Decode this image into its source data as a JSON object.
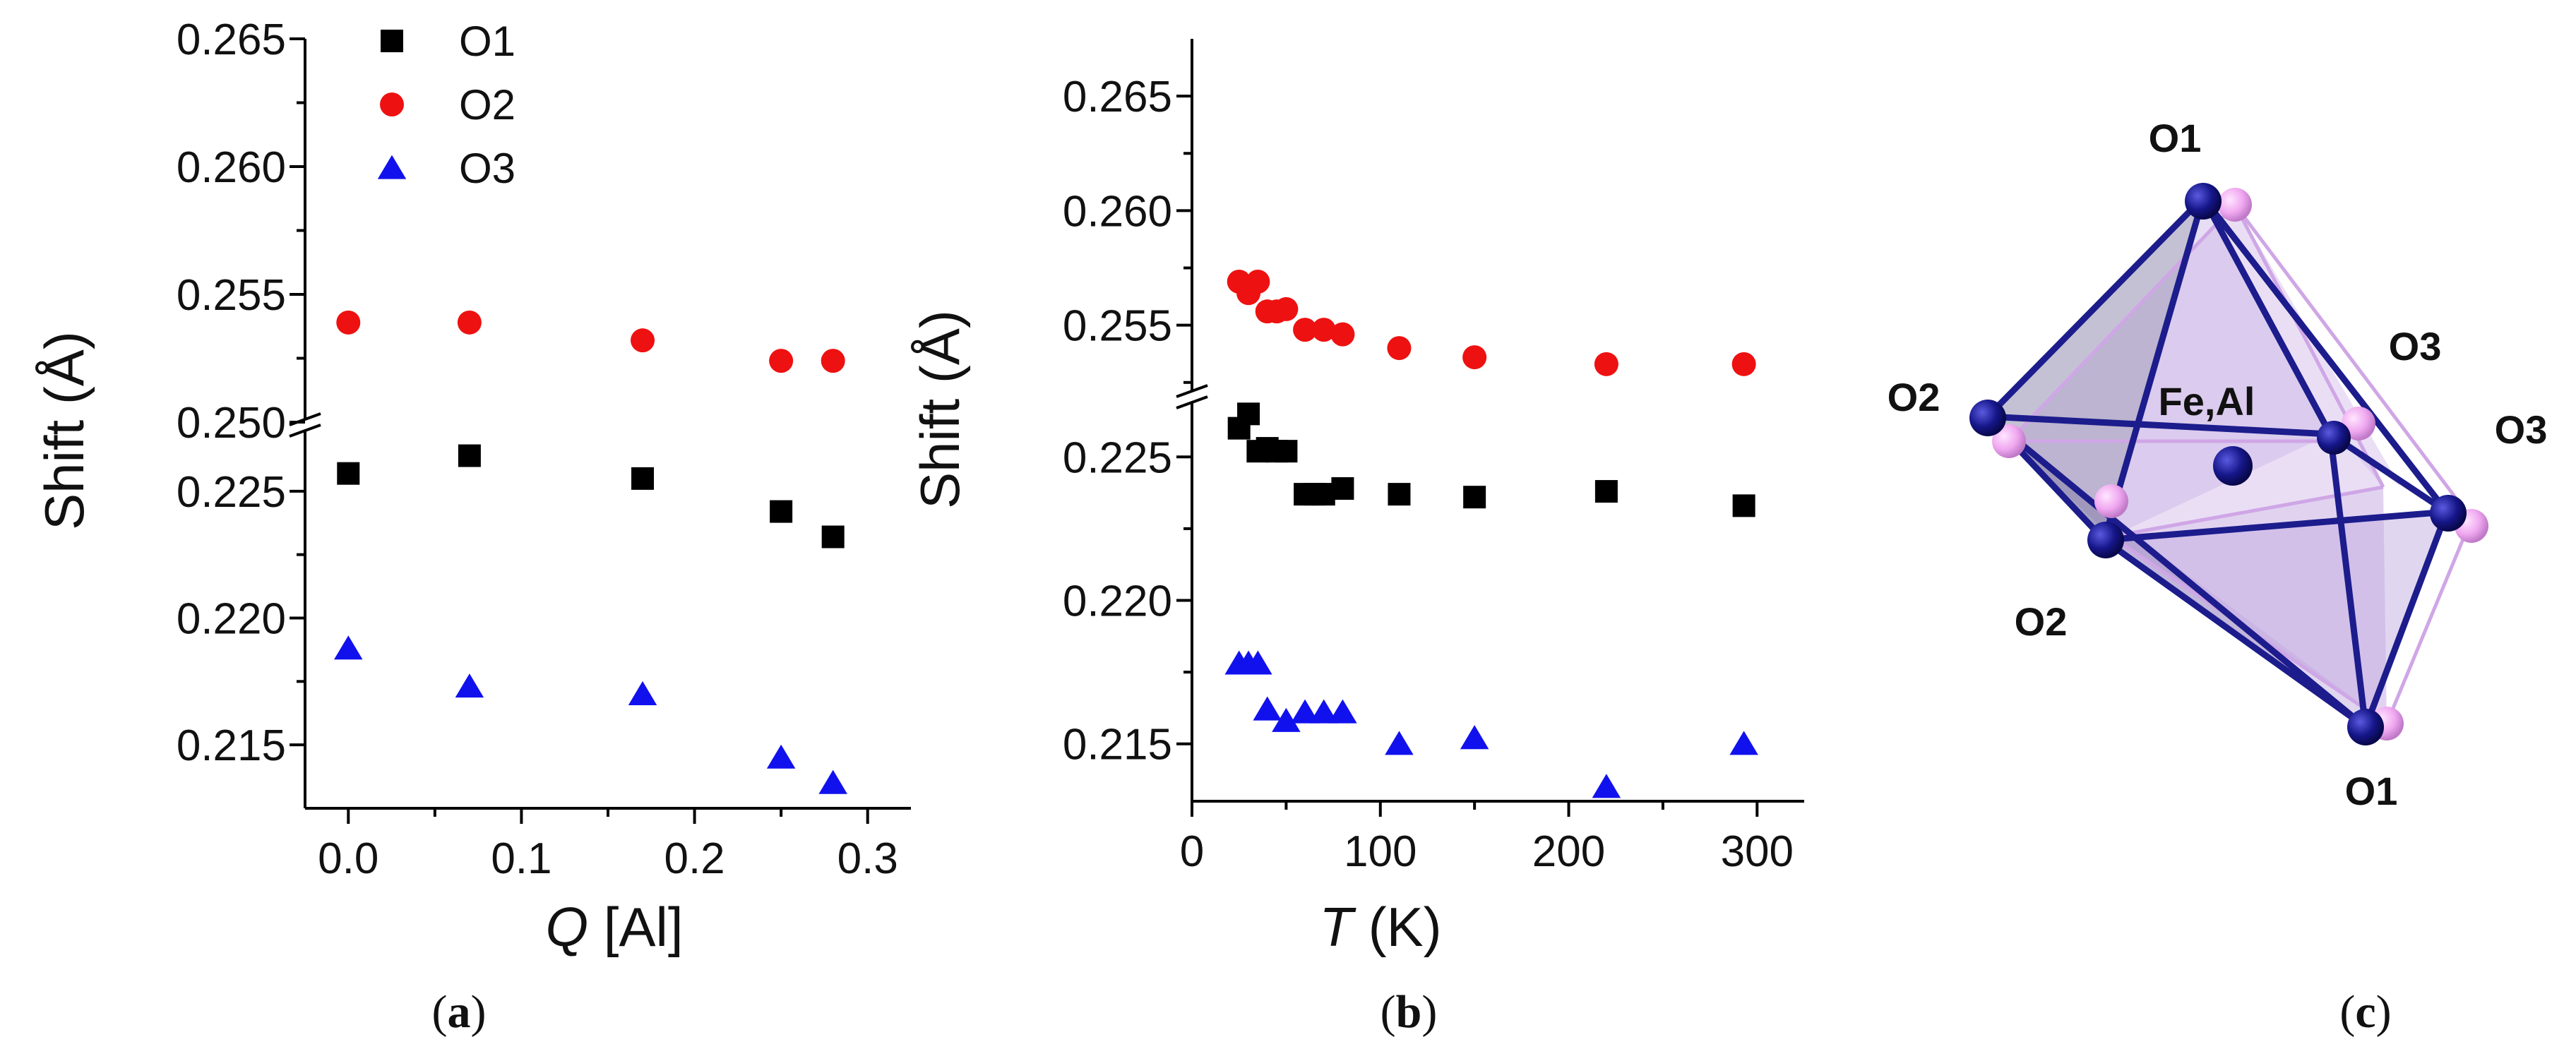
{
  "colors": {
    "O1": "#000000",
    "O2": "#ee1111",
    "O3": "#1111ee",
    "atom_dark": "#141478",
    "atom_light": "#f0a8f0",
    "face_light": "#d8c2ec",
    "face_dark": "#9c97b8"
  },
  "legend": [
    {
      "key": "O1",
      "label": "O1",
      "marker": "square"
    },
    {
      "key": "O2",
      "label": "O2",
      "marker": "circle"
    },
    {
      "key": "O3",
      "label": "O3",
      "marker": "triangle"
    }
  ],
  "chart_data": [
    {
      "type": "scatter",
      "panel": "(a)",
      "caption": {
        "open": "(",
        "letter": "a",
        "close": ")"
      },
      "xlabel": {
        "var": "Q",
        "unit": " [Al]"
      },
      "ylabel": "Shift (Å)",
      "xlim": [
        -0.025,
        0.325
      ],
      "xticks": [
        0.0,
        0.1,
        0.2,
        0.3
      ],
      "xtick_labels": [
        "0.0",
        "0.1",
        "0.2",
        "0.3"
      ],
      "axis_break": true,
      "ylim_lower": [
        0.2125,
        0.2275
      ],
      "ylim_upper": [
        0.25,
        0.265
      ],
      "yticks_lower": [
        0.215,
        0.22,
        0.225
      ],
      "yticks_lower_labels": [
        "0.215",
        "0.220",
        "0.225"
      ],
      "yticks_upper": [
        0.25,
        0.255,
        0.26,
        0.265
      ],
      "yticks_upper_labels": [
        "0.250",
        "0.255",
        "0.260",
        "0.265"
      ],
      "series": [
        {
          "name": "O1",
          "marker": "square",
          "x": [
            0.0,
            0.07,
            0.17,
            0.25,
            0.28
          ],
          "y": [
            0.2257,
            0.2264,
            0.2255,
            0.2242,
            0.2232
          ]
        },
        {
          "name": "O2",
          "marker": "circle",
          "x": [
            0.0,
            0.07,
            0.17,
            0.25,
            0.28
          ],
          "y": [
            0.2539,
            0.2539,
            0.2532,
            0.2524,
            0.2524
          ]
        },
        {
          "name": "O3",
          "marker": "triangle",
          "x": [
            0.0,
            0.07,
            0.17,
            0.25,
            0.28
          ],
          "y": [
            0.2188,
            0.2173,
            0.217,
            0.2145,
            0.2135
          ]
        }
      ]
    },
    {
      "type": "scatter",
      "panel": "(b)",
      "caption": {
        "open": "(",
        "letter": "b",
        "close": ")"
      },
      "xlabel": {
        "var": "T",
        "unit": " (K)"
      },
      "ylabel": "Shift (Å)",
      "xlim": [
        0,
        325
      ],
      "xticks": [
        0,
        100,
        200,
        300
      ],
      "xtick_labels": [
        "0",
        "100",
        "200",
        "300"
      ],
      "axis_break": true,
      "ylim_lower": [
        0.213,
        0.227
      ],
      "ylim_upper": [
        0.252,
        0.2675
      ],
      "yticks_lower": [
        0.215,
        0.22,
        0.225
      ],
      "yticks_lower_labels": [
        "0.215",
        "0.220",
        "0.225"
      ],
      "yticks_upper": [
        0.255,
        0.26,
        0.265
      ],
      "yticks_upper_labels": [
        "0.255",
        "0.260",
        "0.265"
      ],
      "series": [
        {
          "name": "O1",
          "marker": "square",
          "x": [
            25,
            30,
            35,
            40,
            45,
            50,
            60,
            65,
            70,
            80,
            110,
            150,
            220,
            293
          ],
          "y": [
            0.226,
            0.2265,
            0.2252,
            0.2253,
            0.2252,
            0.2252,
            0.2237,
            0.2237,
            0.2237,
            0.2239,
            0.2237,
            0.2236,
            0.2238,
            0.2233
          ]
        },
        {
          "name": "O2",
          "marker": "circle",
          "x": [
            25,
            30,
            35,
            40,
            45,
            50,
            60,
            70,
            80,
            110,
            150,
            220,
            293
          ],
          "y": [
            0.2569,
            0.2564,
            0.2569,
            0.2556,
            0.2556,
            0.2557,
            0.2548,
            0.2548,
            0.2546,
            0.254,
            0.2536,
            0.2533,
            0.2533
          ]
        },
        {
          "name": "O3",
          "marker": "triangle",
          "x": [
            25,
            30,
            35,
            40,
            50,
            60,
            70,
            80,
            110,
            150,
            220,
            293
          ],
          "y": [
            0.2178,
            0.2178,
            0.2178,
            0.2162,
            0.2158,
            0.2161,
            0.2161,
            0.2161,
            0.215,
            0.2152,
            0.2135,
            0.215
          ]
        }
      ]
    }
  ],
  "structure": {
    "caption": {
      "open": "(",
      "letter": "c",
      "close": ")"
    },
    "labels": {
      "O1_top": "O1",
      "O1_bottom": "O1",
      "O2_left": "O2",
      "O2_front": "O2",
      "O3_right": "O3",
      "O3_back": "O3",
      "center": "Fe,Al"
    }
  }
}
